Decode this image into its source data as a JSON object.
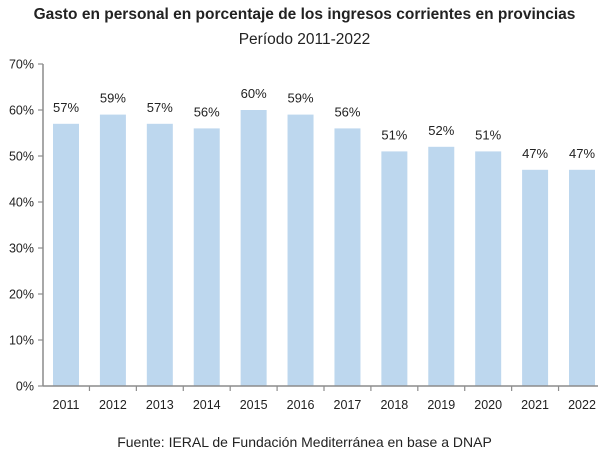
{
  "chart_data": {
    "type": "bar",
    "title": "Gasto en personal en porcentaje de los ingresos corrientes en provincias",
    "subtitle": "Período 2011-2022",
    "source": "Fuente: IERAL de Fundación Mediterránea en base a DNAP",
    "xlabel": "",
    "ylabel": "",
    "categories": [
      "2011",
      "2012",
      "2013",
      "2014",
      "2015",
      "2016",
      "2017",
      "2018",
      "2019",
      "2020",
      "2021",
      "2022"
    ],
    "values": [
      57,
      59,
      57,
      56,
      60,
      59,
      56,
      51,
      52,
      51,
      47,
      47
    ],
    "data_labels": [
      "57%",
      "59%",
      "57%",
      "56%",
      "60%",
      "59%",
      "56%",
      "51%",
      "52%",
      "51%",
      "47%",
      "47%"
    ],
    "ylim": [
      0,
      70
    ],
    "yticks": [
      0,
      10,
      20,
      30,
      40,
      50,
      60,
      70
    ],
    "ytick_labels": [
      "0%",
      "10%",
      "20%",
      "30%",
      "40%",
      "50%",
      "60%",
      "70%"
    ],
    "grid": false,
    "legend": "none",
    "bar_color": "#bdd7ee",
    "axis_color": "#8c8c8c"
  }
}
